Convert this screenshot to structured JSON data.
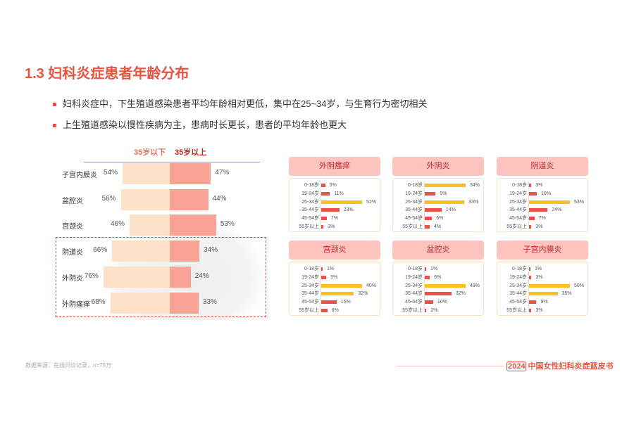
{
  "title": "1.3 妇科炎症患者年龄分布",
  "bullets": [
    "妇科炎症中，下生殖道感染患者平均年龄相对更低，集中在25~34岁，与生育行为密切相关",
    "上生殖道感染以慢性疾病为主，患病时长更长，患者的平均年龄也更大"
  ],
  "compare": {
    "legend_under": "35岁以下",
    "legend_over": "35岁以上",
    "rows": [
      {
        "name": "子宫内膜炎",
        "under": 54,
        "over": 47,
        "under_label": "54%",
        "over_label": "47%"
      },
      {
        "name": "盆腔炎",
        "under": 56,
        "over": 44,
        "under_label": "56%",
        "over_label": "44%"
      },
      {
        "name": "宫颈炎",
        "under": 46,
        "over": 53,
        "under_label": "46%",
        "over_label": "53%"
      },
      {
        "name": "阴道炎",
        "under": 66,
        "over": 34,
        "under_label": "66%",
        "over_label": "34%"
      },
      {
        "name": "外阴炎",
        "under": 76,
        "over": 24,
        "under_label": "76%",
        "over_label": "24%"
      },
      {
        "name": "外阴瘙痒",
        "under": 68,
        "over": 33,
        "under_label": "68%",
        "over_label": "33%"
      }
    ]
  },
  "age_groups": [
    "0-18岁",
    "19-24岁",
    "25-34岁",
    "35-44岁",
    "45-54岁",
    "55岁以上"
  ],
  "colors": {
    "highlight": "#fbbf1f",
    "normal": "#ec4f45"
  },
  "cards": [
    {
      "title": "外阴瘙痒",
      "values": [
        5,
        11,
        52,
        23,
        7,
        3
      ],
      "labels": [
        "5%",
        "11%",
        "52%",
        "23%",
        "7%",
        "3%"
      ],
      "highlight": [
        false,
        false,
        true,
        false,
        false,
        false
      ]
    },
    {
      "title": "外阴炎",
      "values": [
        34,
        9,
        33,
        14,
        6,
        4
      ],
      "labels": [
        "34%",
        "9%",
        "33%",
        "14%",
        "6%",
        "4%"
      ],
      "highlight": [
        true,
        false,
        true,
        false,
        false,
        false
      ]
    },
    {
      "title": "阴道炎",
      "values": [
        3,
        10,
        53,
        24,
        7,
        3
      ],
      "labels": [
        "3%",
        "10%",
        "53%",
        "24%",
        "7%",
        "3%"
      ],
      "highlight": [
        false,
        false,
        true,
        false,
        false,
        false
      ]
    },
    {
      "title": "宫颈炎",
      "values": [
        1,
        5,
        40,
        32,
        15,
        6
      ],
      "labels": [
        "1%",
        "5%",
        "40%",
        "32%",
        "15%",
        "6%"
      ],
      "highlight": [
        false,
        false,
        true,
        true,
        false,
        false
      ]
    },
    {
      "title": "盆腔炎",
      "values": [
        1,
        6,
        49,
        32,
        10,
        2
      ],
      "labels": [
        "1%",
        "6%",
        "49%",
        "32%",
        "10%",
        "2%"
      ],
      "highlight": [
        false,
        false,
        true,
        false,
        false,
        false
      ]
    },
    {
      "title": "子宫内膜炎",
      "values": [
        1,
        3,
        50,
        35,
        9,
        3
      ],
      "labels": [
        "1%",
        "3%",
        "50%",
        "35%",
        "9%",
        "3%"
      ],
      "highlight": [
        false,
        false,
        true,
        true,
        false,
        false
      ]
    }
  ],
  "footer": {
    "source": "数据来源：在线问诊记录，n=75万",
    "year": "2024",
    "brand": "中国女性妇科炎症蓝皮书"
  }
}
